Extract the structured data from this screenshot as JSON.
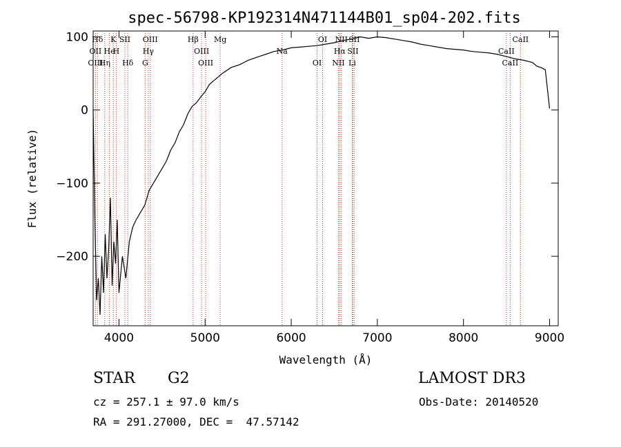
{
  "chart_data": {
    "type": "line",
    "title": "spec-56798-KP192314N471144B01_sp04-202.fits",
    "xlabel": "Wavelength (Å)",
    "ylabel": "Flux (relative)",
    "xlim": [
      3700,
      9100
    ],
    "ylim": [
      -295,
      108
    ],
    "xticks": [
      4000,
      5000,
      6000,
      7000,
      8000,
      9000
    ],
    "xtick_labels": [
      "4000",
      "5000",
      "6000",
      "7000",
      "8000",
      "9000"
    ],
    "yticks": [
      -200,
      -100,
      0,
      100
    ],
    "ytick_labels": [
      "−200",
      "−100",
      "0",
      "100"
    ],
    "grid": false,
    "series": [
      {
        "name": "flux",
        "x": [
          3700,
          3720,
          3740,
          3760,
          3780,
          3800,
          3820,
          3840,
          3860,
          3880,
          3900,
          3920,
          3940,
          3960,
          3980,
          4000,
          4040,
          4080,
          4120,
          4160,
          4200,
          4250,
          4300,
          4350,
          4400,
          4450,
          4500,
          4550,
          4600,
          4650,
          4700,
          4750,
          4800,
          4850,
          4900,
          4950,
          5000,
          5050,
          5100,
          5150,
          5200,
          5300,
          5400,
          5500,
          5600,
          5700,
          5800,
          5900,
          6000,
          6100,
          6200,
          6300,
          6400,
          6500,
          6600,
          6700,
          6800,
          6900,
          7000,
          7100,
          7200,
          7300,
          7400,
          7500,
          7600,
          7700,
          7800,
          7900,
          8000,
          8100,
          8200,
          8300,
          8400,
          8500,
          8600,
          8700,
          8800,
          8850,
          8900,
          8950,
          9000
        ],
        "y": [
          0,
          -150,
          -260,
          -230,
          -280,
          -200,
          -250,
          -170,
          -230,
          -190,
          -120,
          -240,
          -180,
          -210,
          -150,
          -250,
          -200,
          -230,
          -180,
          -160,
          -150,
          -140,
          -130,
          -110,
          -100,
          -90,
          -80,
          -70,
          -55,
          -45,
          -30,
          -20,
          -5,
          5,
          10,
          18,
          25,
          35,
          40,
          45,
          50,
          58,
          62,
          68,
          72,
          76,
          80,
          82,
          85,
          86,
          87,
          88,
          90,
          92,
          95,
          97,
          100,
          98,
          100,
          99,
          97,
          95,
          93,
          90,
          88,
          86,
          84,
          83,
          82,
          80,
          79,
          78,
          76,
          73,
          70,
          68,
          65,
          60,
          58,
          55,
          2
        ]
      }
    ],
    "annotations": [
      {
        "label": "Hδ",
        "wavelength": 3750
      },
      {
        "label": "OII",
        "wavelength": 3727
      },
      {
        "label": "OIII",
        "wavelength": 3727
      },
      {
        "label": "K",
        "wavelength": 3934
      },
      {
        "label": "He",
        "wavelength": 3889
      },
      {
        "label": "Hη",
        "wavelength": 3835
      },
      {
        "label": "SII",
        "wavelength": 4068
      },
      {
        "label": "H",
        "wavelength": 3968
      },
      {
        "label": "Hδ",
        "wavelength": 4102
      },
      {
        "label": "OIII",
        "wavelength": 4363
      },
      {
        "label": "Hγ",
        "wavelength": 4340
      },
      {
        "label": "G",
        "wavelength": 4304
      },
      {
        "label": "Hβ",
        "wavelength": 4861
      },
      {
        "label": "OIII",
        "wavelength": 4959
      },
      {
        "label": "OIII",
        "wavelength": 5007
      },
      {
        "label": "Mg",
        "wavelength": 5175
      },
      {
        "label": "Na",
        "wavelength": 5893
      },
      {
        "label": "OI",
        "wavelength": 6300
      },
      {
        "label": "OI",
        "wavelength": 6364
      },
      {
        "label": "Hα",
        "wavelength": 6563
      },
      {
        "label": "NII",
        "wavelength": 6548
      },
      {
        "label": "NII",
        "wavelength": 6583
      },
      {
        "label": "SII",
        "wavelength": 6716
      },
      {
        "label": "Li",
        "wavelength": 6708
      },
      {
        "label": "SII",
        "wavelength": 6731
      },
      {
        "label": "CaII",
        "wavelength": 8498
      },
      {
        "label": "CaII",
        "wavelength": 8542
      },
      {
        "label": "CaII",
        "wavelength": 8662
      }
    ]
  },
  "info": {
    "object_class": "STAR",
    "subclass": "G2",
    "survey": "LAMOST DR3",
    "redshift": "cz = 257.1 ± 97.0 km/s",
    "obs_date": "Obs-Date: 20140520",
    "coords": "RA = 291.27000, DEC =  47.57142"
  }
}
